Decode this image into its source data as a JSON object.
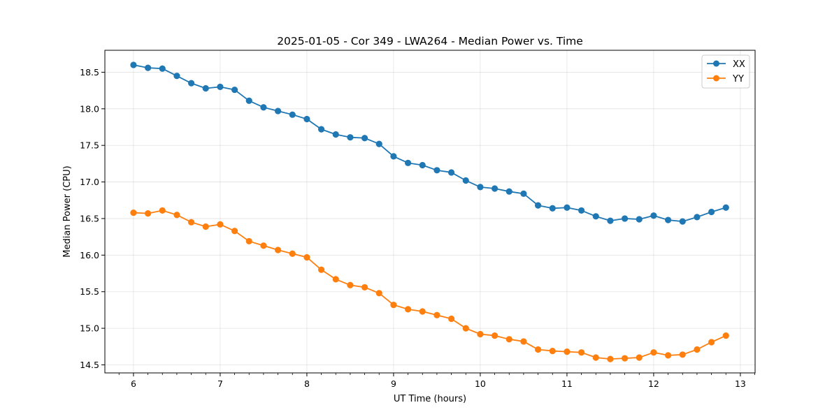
{
  "chart_data": {
    "type": "line",
    "title": "2025-01-05 - Cor 349 - LWA264 - Median Power vs. Time",
    "xlabel": "UT Time (hours)",
    "ylabel": "Median Power (CPU)",
    "xlim": [
      5.67,
      13.17
    ],
    "ylim": [
      14.39,
      18.8
    ],
    "xticks": [
      6,
      7,
      8,
      9,
      10,
      11,
      12,
      13
    ],
    "xtick_labels": [
      "6",
      "7",
      "8",
      "9",
      "10",
      "11",
      "12",
      "13"
    ],
    "yticks": [
      14.5,
      15.0,
      15.5,
      16.0,
      16.5,
      17.0,
      17.5,
      18.0,
      18.5
    ],
    "ytick_labels": [
      "14.5",
      "15.0",
      "15.5",
      "16.0",
      "16.5",
      "17.0",
      "17.5",
      "18.0",
      "18.5"
    ],
    "grid": true,
    "legend_position": "top-right",
    "x": [
      6.0,
      6.1667,
      6.3333,
      6.5,
      6.6667,
      6.8333,
      7.0,
      7.1667,
      7.3333,
      7.5,
      7.6667,
      7.8333,
      8.0,
      8.1667,
      8.3333,
      8.5,
      8.6667,
      8.8333,
      9.0,
      9.1667,
      9.3333,
      9.5,
      9.6667,
      9.8333,
      10.0,
      10.1667,
      10.3333,
      10.5,
      10.6667,
      10.8333,
      11.0,
      11.1667,
      11.3333,
      11.5,
      11.6667,
      11.8333,
      12.0,
      12.1667,
      12.3333,
      12.5,
      12.6667,
      12.8333
    ],
    "series": [
      {
        "name": "XX",
        "color": "#1f77b4",
        "values": [
          18.6,
          18.56,
          18.55,
          18.45,
          18.35,
          18.28,
          18.3,
          18.26,
          18.11,
          18.02,
          17.97,
          17.92,
          17.86,
          17.72,
          17.65,
          17.61,
          17.6,
          17.52,
          17.35,
          17.26,
          17.23,
          17.16,
          17.13,
          17.02,
          16.93,
          16.91,
          16.87,
          16.84,
          16.68,
          16.64,
          16.65,
          16.61,
          16.53,
          16.47,
          16.5,
          16.49,
          16.54,
          16.48,
          16.46,
          16.52,
          16.59,
          16.65
        ]
      },
      {
        "name": "YY",
        "color": "#ff7f0e",
        "values": [
          16.58,
          16.57,
          16.61,
          16.55,
          16.45,
          16.39,
          16.42,
          16.33,
          16.19,
          16.13,
          16.07,
          16.02,
          15.97,
          15.8,
          15.67,
          15.59,
          15.56,
          15.48,
          15.32,
          15.26,
          15.23,
          15.18,
          15.13,
          15.0,
          14.92,
          14.9,
          14.85,
          14.82,
          14.71,
          14.69,
          14.68,
          14.67,
          14.6,
          14.58,
          14.59,
          14.6,
          14.67,
          14.63,
          14.64,
          14.71,
          14.81,
          14.9
        ]
      }
    ]
  }
}
